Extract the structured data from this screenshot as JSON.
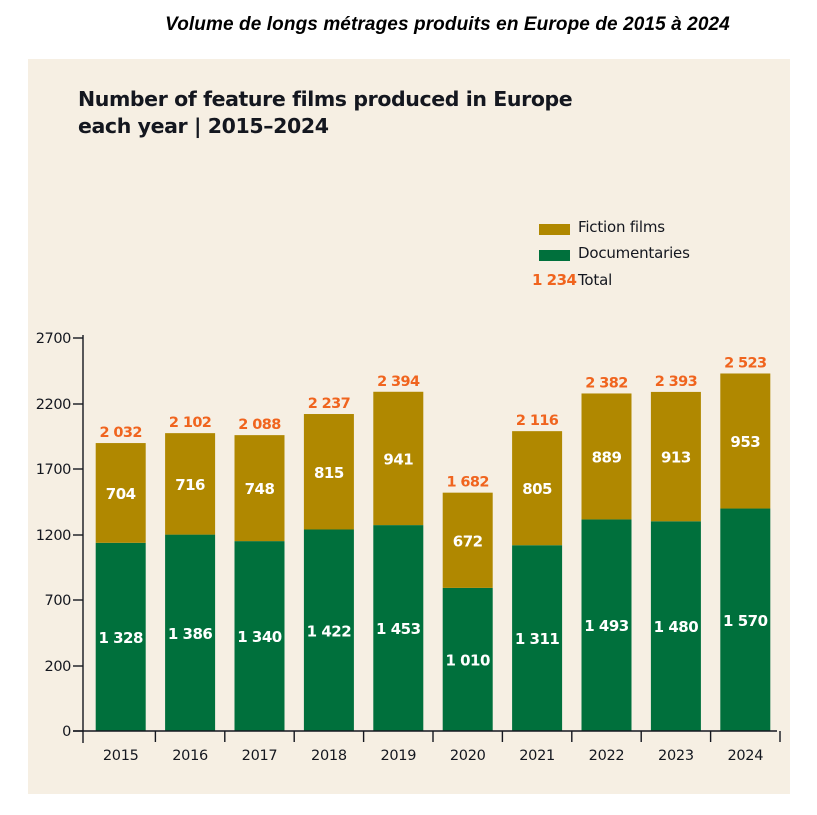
{
  "caption": "Volume de longs métrages produits en Europe de 2015 à 2024",
  "colors": {
    "fiction": "#b08800",
    "documentary": "#00703c",
    "total": "#f0641e",
    "panel_bg": "#f6efe3",
    "axis": "#14171f",
    "bar_label": "#ffffff"
  },
  "legend": {
    "fiction_label": "Fiction films",
    "documentary_label": "Documentaries",
    "total_sample": "1 234",
    "total_label": "Total"
  },
  "chart_data": {
    "type": "bar",
    "stacked": true,
    "title": "Number of feature films produced in Europe each year | 2015–2024",
    "title_lines": [
      "Number of feature films produced in Europe",
      "each year | 2015–2024"
    ],
    "xlabel": "",
    "ylabel": "",
    "categories": [
      "2015",
      "2016",
      "2017",
      "2018",
      "2019",
      "2020",
      "2021",
      "2022",
      "2023",
      "2024"
    ],
    "series": [
      {
        "name": "Documentaries",
        "values": [
          1328,
          1386,
          1340,
          1422,
          1453,
          1010,
          1311,
          1493,
          1480,
          1570
        ]
      },
      {
        "name": "Fiction films",
        "values": [
          704,
          716,
          748,
          815,
          941,
          672,
          805,
          889,
          913,
          953
        ]
      }
    ],
    "totals": [
      2032,
      2102,
      2088,
      2237,
      2394,
      1682,
      2116,
      2382,
      2393,
      2523
    ],
    "total_labels": [
      "2 032",
      "2 102",
      "2 088",
      "2 237",
      "2 394",
      "1 682",
      "2 116",
      "2 382",
      "2 393",
      "2 523"
    ],
    "doc_labels": [
      "1 328",
      "1 386",
      "1 340",
      "1 422",
      "1 453",
      "1 010",
      "1 311",
      "1 493",
      "1 480",
      "1 570"
    ],
    "fiction_labels": [
      "704",
      "716",
      "748",
      "815",
      "941",
      "672",
      "805",
      "889",
      "913",
      "953"
    ],
    "yticks": [
      "0",
      "200",
      "700",
      "1200",
      "1700",
      "2200",
      "2700"
    ],
    "ylim": [
      0,
      2700
    ],
    "grid": false,
    "legend_position": "top-right"
  }
}
